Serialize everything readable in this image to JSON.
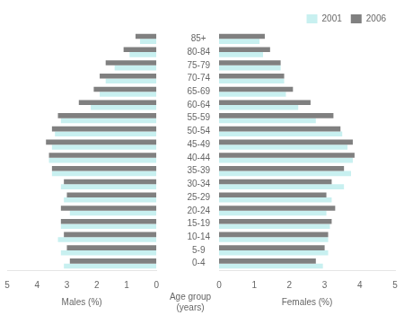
{
  "chart_data": [
    {
      "type": "bar",
      "orientation": "horizontal",
      "xlabel": "Males (%)",
      "categories": [
        "0-4",
        "5-9",
        "10-14",
        "15-19",
        "20-24",
        "25-29",
        "30-34",
        "35-39",
        "40-44",
        "45-49",
        "50-54",
        "55-59",
        "60-64",
        "65-69",
        "70-74",
        "75-79",
        "80-84",
        "85+"
      ],
      "series": [
        {
          "name": "2006",
          "color": "#808080",
          "values": [
            2.9,
            3.0,
            3.1,
            3.2,
            3.2,
            3.0,
            3.1,
            3.5,
            3.6,
            3.7,
            3.5,
            3.3,
            2.6,
            2.1,
            1.9,
            1.7,
            1.1,
            0.7
          ]
        },
        {
          "name": "2001",
          "color": "#c8f0f0",
          "values": [
            3.1,
            3.2,
            3.3,
            3.2,
            2.9,
            3.1,
            3.2,
            3.5,
            3.6,
            3.5,
            3.4,
            3.2,
            2.2,
            1.9,
            1.7,
            1.4,
            0.9,
            0.55
          ]
        }
      ],
      "xlim": [
        5,
        0
      ],
      "xticks": [
        5,
        4,
        3,
        2,
        1,
        0
      ],
      "grid": false
    },
    {
      "type": "bar",
      "orientation": "horizontal",
      "xlabel": "Females (%)",
      "ylabel": "Age group\n(years)",
      "categories": [
        "0-4",
        "5-9",
        "10-14",
        "15-19",
        "20-24",
        "25-29",
        "30-34",
        "35-39",
        "40-44",
        "45-49",
        "50-54",
        "55-59",
        "60-64",
        "65-69",
        "70-74",
        "75-79",
        "80-84",
        "85+"
      ],
      "series": [
        {
          "name": "2006",
          "color": "#808080",
          "values": [
            2.75,
            3.0,
            3.1,
            3.2,
            3.3,
            3.05,
            3.2,
            3.55,
            3.85,
            3.8,
            3.45,
            3.25,
            2.6,
            2.1,
            1.85,
            1.75,
            1.45,
            1.3
          ]
        },
        {
          "name": "2001",
          "color": "#c8f0f0",
          "values": [
            2.95,
            3.1,
            3.1,
            3.15,
            3.05,
            3.2,
            3.55,
            3.75,
            3.8,
            3.65,
            3.5,
            2.75,
            2.25,
            1.9,
            1.85,
            1.75,
            1.25,
            1.15
          ]
        }
      ],
      "xlim": [
        0,
        5
      ],
      "xticks": [
        0,
        1,
        2,
        3,
        4,
        5
      ],
      "grid": false,
      "legend": "upper right"
    }
  ]
}
